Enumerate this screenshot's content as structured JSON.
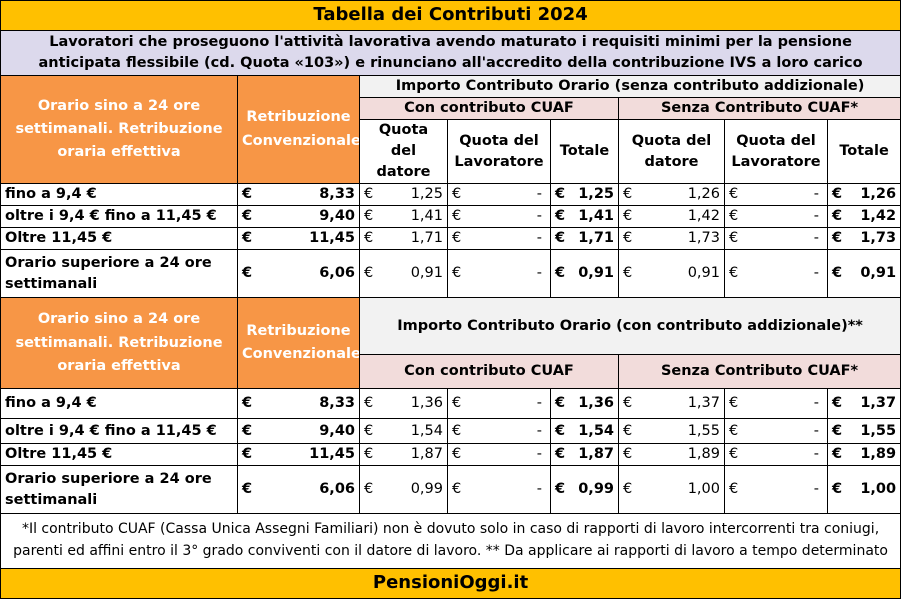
{
  "title": "Tabella dei Contributi 2024",
  "intro": "Lavoratori che proseguono l'attività lavorativa avendo maturato i requisiti minimi per la pensione anticipata flessibile (cd. Quota «103») e rinunciano all'accredito della contribuzione IVS a loro carico",
  "currency": "€",
  "section1": {
    "col_orario": "Orario sino a 24 ore settimanali. Retribuzione oraria effettiva",
    "col_retribuzione": "Retribuzione Convenzionale",
    "importo": "Importo Contributo Orario (senza contributo addizionale)",
    "con_cuaf": "Con contributo CUAF",
    "senza_cuaf": "Senza Contributo CUAF*",
    "quota_datore": "Quota del datore",
    "quota_lavoratore": "Quota del Lavoratore",
    "totale": "Totale",
    "rows": [
      {
        "label": "fino a 9,4 €",
        "retr": "8,33",
        "con_datore": "1,25",
        "con_lav": "-",
        "con_tot": "1,25",
        "senza_datore": "1,26",
        "senza_lav": "-",
        "senza_tot": "1,26"
      },
      {
        "label": "oltre i 9,4 € fino a 11,45 €",
        "retr": "9,40",
        "con_datore": "1,41",
        "con_lav": "-",
        "con_tot": "1,41",
        "senza_datore": "1,42",
        "senza_lav": "-",
        "senza_tot": "1,42"
      },
      {
        "label": "Oltre 11,45 €",
        "retr": "11,45",
        "con_datore": "1,71",
        "con_lav": "-",
        "con_tot": "1,71",
        "senza_datore": "1,73",
        "senza_lav": "-",
        "senza_tot": "1,73"
      },
      {
        "label": "Orario superiore a 24 ore settimanali",
        "retr": "6,06",
        "con_datore": "0,91",
        "con_lav": "-",
        "con_tot": "0,91",
        "senza_datore": "0,91",
        "senza_lav": "-",
        "senza_tot": "0,91"
      }
    ]
  },
  "section2": {
    "col_orario": "Orario sino a 24 ore settimanali. Retribuzione oraria effettiva",
    "col_retribuzione": "Retribuzione Convenzionale",
    "importo": "Importo Contributo Orario (con contributo addizionale)**",
    "con_cuaf": "Con contributo CUAF",
    "senza_cuaf": "Senza Contributo CUAF*",
    "rows": [
      {
        "label": "fino a 9,4 €",
        "retr": "8,33",
        "con_datore": "1,36",
        "con_lav": "-",
        "con_tot": "1,36",
        "senza_datore": "1,37",
        "senza_lav": "-",
        "senza_tot": "1,37"
      },
      {
        "label": "oltre i 9,4 € fino a 11,45 €",
        "retr": "9,40",
        "con_datore": "1,54",
        "con_lav": "-",
        "con_tot": "1,54",
        "senza_datore": "1,55",
        "senza_lav": "-",
        "senza_tot": "1,55"
      },
      {
        "label": "Oltre 11,45 €",
        "retr": "11,45",
        "con_datore": "1,87",
        "con_lav": "-",
        "con_tot": "1,87",
        "senza_datore": "1,89",
        "senza_lav": "-",
        "senza_tot": "1,89"
      },
      {
        "label": "Orario superiore a 24 ore settimanali",
        "retr": "6,06",
        "con_datore": "0,99",
        "con_lav": "-",
        "con_tot": "0,99",
        "senza_datore": "1,00",
        "senza_lav": "-",
        "senza_tot": "1,00"
      }
    ]
  },
  "footnote": "*Il contributo CUAF (Cassa Unica Assegni Familiari) non è dovuto solo in caso di rapporti di lavoro intercorrenti tra coniugi, parenti ed affini entro il 3° grado conviventi con il datore di lavoro. ** Da applicare ai rapporti di lavoro a tempo determinato",
  "brand": "PensioniOggi.it",
  "colors": {
    "header_yellow": "#ffc000",
    "orange": "#f79646",
    "lavender": "#dcd9ec",
    "pink": "#f2dcdb",
    "grey": "#f2f2f2"
  }
}
